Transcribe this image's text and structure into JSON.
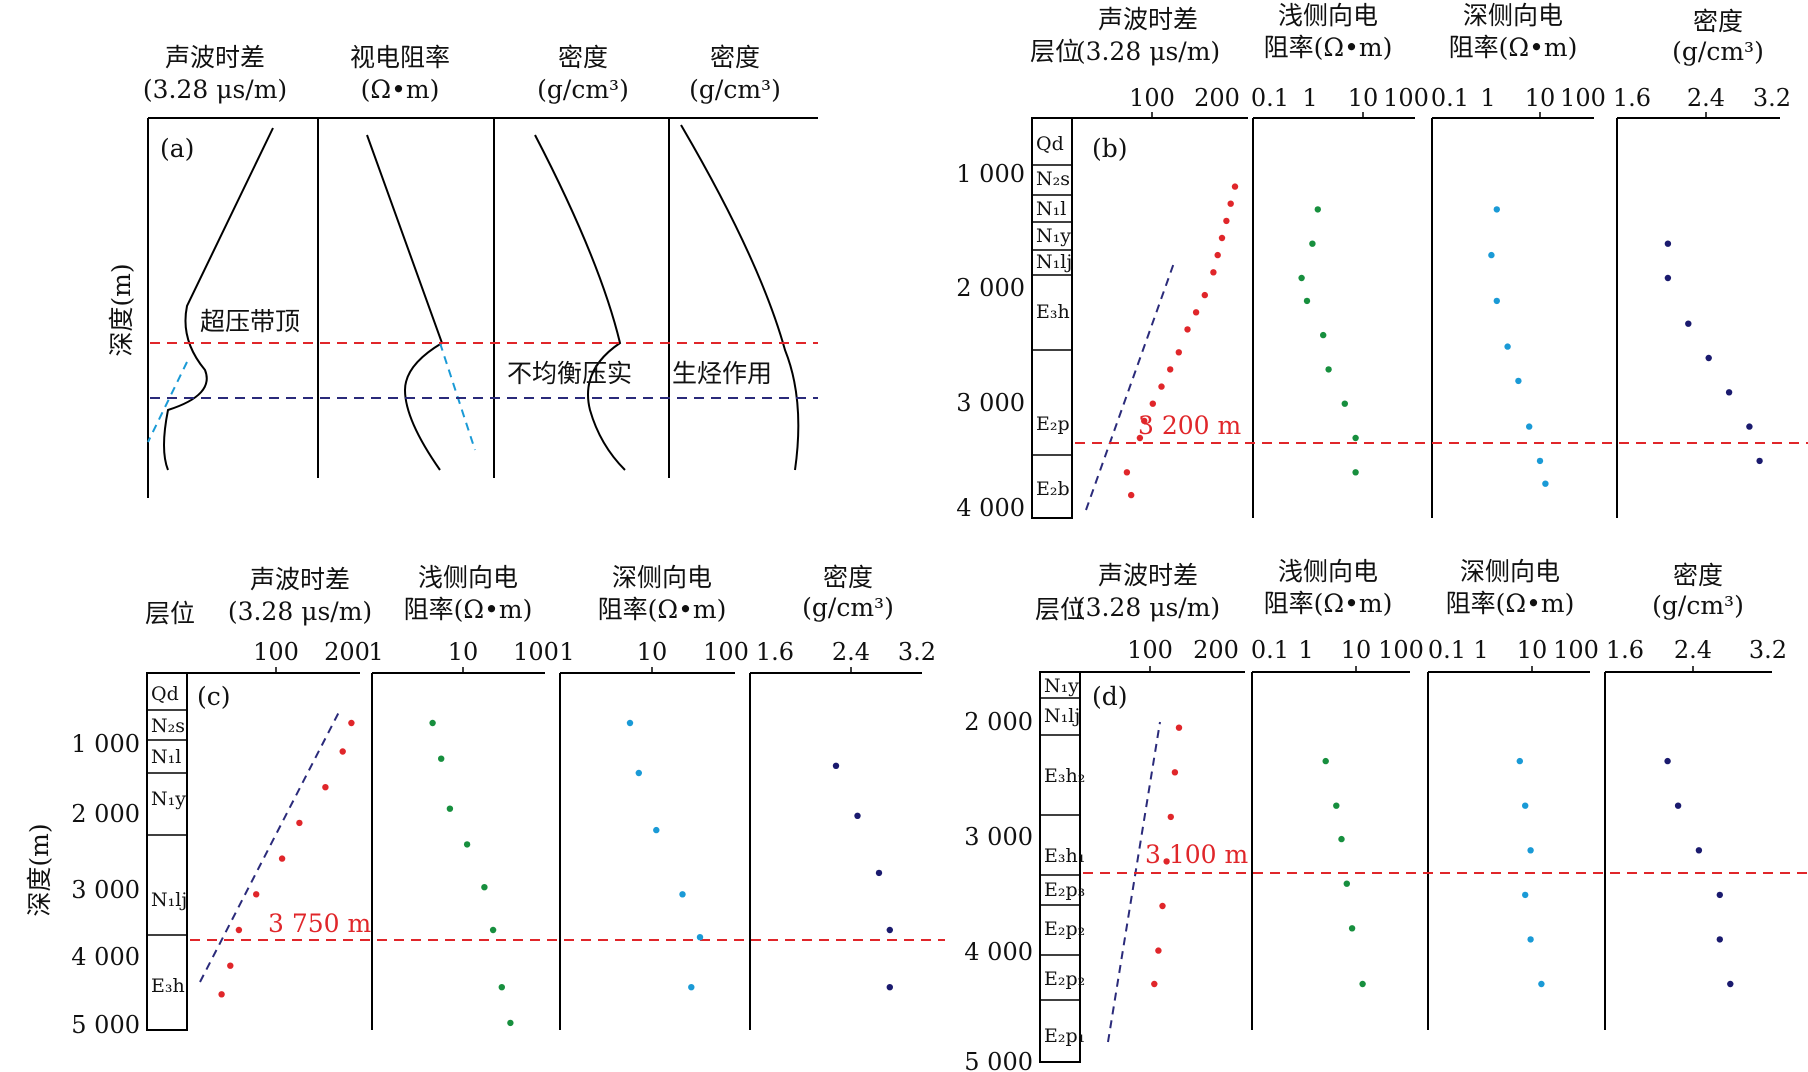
{
  "colors": {
    "sonic": "#e0262a",
    "shallow": "#178f3e",
    "deep": "#1a9ad6",
    "density": "#1a1a6e",
    "overpressure_line": "#e0262a",
    "trend": "#2a2a7a"
  },
  "panel_a": {
    "tag": "(a)",
    "ylabel": "深度(m)",
    "headers": [
      [
        "声波时差",
        "(3.28 μs/m)"
      ],
      [
        "视电阻率",
        "(Ω•m)"
      ],
      [
        "密度",
        "(g/cm³)"
      ],
      [
        "密度",
        "(g/cm³)"
      ]
    ],
    "annotations": {
      "top": "超压带顶",
      "compaction": "不均衡压实",
      "hydrocarbon": "生烃作用"
    }
  },
  "panels": {
    "b": {
      "tag": "(b)",
      "strat_header": "层位",
      "depth_marker": "3 200 m",
      "depth_marker_value": 3200,
      "headers": [
        [
          "声波时差",
          "(3.28 μs/m)"
        ],
        [
          "浅侧向电",
          "阻率(Ω•m)"
        ],
        [
          "深侧向电",
          "阻率(Ω•m)"
        ],
        [
          "密度",
          "(g/cm³)"
        ]
      ],
      "ticks": [
        [
          "100",
          "200"
        ],
        [
          "0.1",
          "1",
          "10",
          "100"
        ],
        [
          "0.1",
          "1",
          "10",
          "100"
        ],
        [
          "1.6",
          "2.4",
          "3.2"
        ]
      ],
      "depth_ticks": [
        "1 000",
        "2 000",
        "3 000",
        "4 000"
      ],
      "formations": [
        "Qd",
        "N₂s",
        "N₁l",
        "N₁y",
        "N₁lj",
        "E₃h",
        "E₂p",
        "E₂b"
      ]
    },
    "c": {
      "tag": "(c)",
      "strat_header": "层位",
      "ylabel": "深度(m)",
      "depth_marker": "3 750 m",
      "depth_marker_value": 3750,
      "headers": [
        [
          "声波时差",
          "(3.28 μs/m)"
        ],
        [
          "浅侧向电",
          "阻率(Ω•m)"
        ],
        [
          "深侧向电",
          "阻率(Ω•m)"
        ],
        [
          "密度",
          "(g/cm³)"
        ]
      ],
      "ticks": [
        [
          "100",
          "200"
        ],
        [
          "1",
          "10",
          "100"
        ],
        [
          "1",
          "10",
          "100"
        ],
        [
          "1.6",
          "2.4",
          "3.2"
        ]
      ],
      "depth_ticks": [
        "1 000",
        "2 000",
        "3 000",
        "4 000",
        "5 000"
      ],
      "formations": [
        "Qd",
        "N₂s",
        "N₁l",
        "N₁y",
        "N₁lj",
        "E₃h"
      ]
    },
    "d": {
      "tag": "(d)",
      "strat_header": "层位",
      "depth_marker": "3 100 m",
      "depth_marker_value": 3100,
      "headers": [
        [
          "声波时差",
          "(3.28 μs/m)"
        ],
        [
          "浅侧向电",
          "阻率(Ω•m)"
        ],
        [
          "深侧向电",
          "阻率(Ω•m)"
        ],
        [
          "密度",
          "(g/cm³)"
        ]
      ],
      "ticks": [
        [
          "100",
          "200"
        ],
        [
          "0.1",
          "1",
          "10",
          "100"
        ],
        [
          "0.1",
          "1",
          "10",
          "100"
        ],
        [
          "1.6",
          "2.4",
          "3.2"
        ]
      ],
      "depth_ticks": [
        "2 000",
        "3 000",
        "4 000",
        "5 000"
      ],
      "formations": [
        "N₁y",
        "N₁lj",
        "E₃h₂",
        "E₃h₁",
        "E₂p₃",
        "E₂p₂",
        "E₂p₂",
        "E₂p₁"
      ]
    }
  },
  "chart_data": [
    {
      "type": "line",
      "panel": "a",
      "series": [
        {
          "values": [
            [
              0,
              0
            ],
            [
              0.45,
              0.3
            ],
            [
              0.1,
              0.55
            ],
            [
              0.3,
              0.7
            ],
            [
              0,
              0.9
            ]
          ]
        },
        {
          "values": [
            [
              0.3,
              0.0
            ],
            [
              0.75,
              0.3
            ],
            [
              0.35,
              0.55
            ],
            [
              0.7,
              0.9
            ]
          ]
        },
        {
          "values": [
            [
              0.3,
              0.0
            ],
            [
              0.75,
              0.3
            ],
            [
              0.55,
              0.55
            ],
            [
              0.75,
              0.9
            ]
          ]
        },
        {
          "values": [
            [
              0,
              0
            ],
            [
              0.75,
              0.6
            ],
            [
              0.75,
              0.9
            ]
          ]
        }
      ]
    },
    {
      "type": "scatter",
      "panel": "b",
      "ylim": [
        500,
        4000
      ],
      "overpressure_top": 3200,
      "series": [
        {
          "name": "声波时差",
          "xlim": [
            0,
            200
          ],
          "values": [
            [
              185,
              1100
            ],
            [
              180,
              1250
            ],
            [
              175,
              1400
            ],
            [
              170,
              1550
            ],
            [
              165,
              1700
            ],
            [
              160,
              1850
            ],
            [
              150,
              2050
            ],
            [
              140,
              2200
            ],
            [
              130,
              2350
            ],
            [
              120,
              2550
            ],
            [
              110,
              2700
            ],
            [
              100,
              2850
            ],
            [
              90,
              3000
            ],
            [
              80,
              3150
            ],
            [
              75,
              3300
            ],
            [
              60,
              3600
            ],
            [
              65,
              3800
            ]
          ]
        },
        {
          "name": "浅侧向电阻率",
          "xlim": [
            -1,
            2
          ],
          "values": [
            [
              0.2,
              1300
            ],
            [
              0.1,
              1600
            ],
            [
              -0.1,
              1900
            ],
            [
              0.0,
              2100
            ],
            [
              0.3,
              2400
            ],
            [
              0.4,
              2700
            ],
            [
              0.7,
              3000
            ],
            [
              0.9,
              3300
            ],
            [
              0.9,
              3600
            ]
          ]
        },
        {
          "name": "深侧向电阻率",
          "xlim": [
            -1,
            2
          ],
          "values": [
            [
              0.2,
              1300
            ],
            [
              0.1,
              1700
            ],
            [
              0.2,
              2100
            ],
            [
              0.4,
              2500
            ],
            [
              0.6,
              2800
            ],
            [
              0.8,
              3200
            ],
            [
              1.0,
              3500
            ],
            [
              1.1,
              3700
            ]
          ]
        },
        {
          "name": "密度",
          "xlim": [
            1.6,
            3.2
          ],
          "values": [
            [
              2.1,
              1600
            ],
            [
              2.1,
              1900
            ],
            [
              2.3,
              2300
            ],
            [
              2.5,
              2600
            ],
            [
              2.7,
              2900
            ],
            [
              2.9,
              3200
            ],
            [
              3.0,
              3500
            ]
          ]
        }
      ]
    },
    {
      "type": "scatter",
      "panel": "c",
      "ylim": [
        0,
        5000
      ],
      "overpressure_top": 3750,
      "series": [
        {
          "name": "声波时差",
          "xlim": [
            0,
            200
          ],
          "values": [
            [
              190,
              700
            ],
            [
              180,
              1100
            ],
            [
              160,
              1600
            ],
            [
              130,
              2100
            ],
            [
              110,
              2600
            ],
            [
              80,
              3100
            ],
            [
              60,
              3600
            ],
            [
              50,
              4100
            ],
            [
              40,
              4500
            ]
          ]
        },
        {
          "name": "浅侧向电阻率",
          "xlim": [
            0,
            2
          ],
          "values": [
            [
              0.7,
              700
            ],
            [
              0.8,
              1200
            ],
            [
              0.9,
              1900
            ],
            [
              1.1,
              2400
            ],
            [
              1.3,
              3000
            ],
            [
              1.4,
              3600
            ],
            [
              1.5,
              4400
            ],
            [
              1.6,
              4900
            ]
          ]
        },
        {
          "name": "深侧向电阻率",
          "xlim": [
            0,
            2
          ],
          "values": [
            [
              0.8,
              700
            ],
            [
              0.9,
              1400
            ],
            [
              1.1,
              2200
            ],
            [
              1.4,
              3100
            ],
            [
              1.6,
              3700
            ],
            [
              1.5,
              4400
            ]
          ]
        },
        {
          "name": "密度",
          "xlim": [
            1.6,
            3.2
          ],
          "values": [
            [
              2.4,
              1300
            ],
            [
              2.6,
              2000
            ],
            [
              2.8,
              2800
            ],
            [
              2.9,
              3600
            ],
            [
              2.9,
              4400
            ]
          ]
        }
      ]
    },
    {
      "type": "scatter",
      "panel": "d",
      "ylim": [
        1500,
        5000
      ],
      "overpressure_top": 3100,
      "series": [
        {
          "name": "声波时差",
          "xlim": [
            0,
            200
          ],
          "values": [
            [
              120,
              2000
            ],
            [
              115,
              2400
            ],
            [
              110,
              2800
            ],
            [
              105,
              3200
            ],
            [
              100,
              3600
            ],
            [
              95,
              4000
            ],
            [
              90,
              4300
            ]
          ]
        },
        {
          "name": "浅侧向电阻率",
          "xlim": [
            -1,
            2
          ],
          "values": [
            [
              0.4,
              2300
            ],
            [
              0.6,
              2700
            ],
            [
              0.7,
              3000
            ],
            [
              0.8,
              3400
            ],
            [
              0.9,
              3800
            ],
            [
              1.1,
              4300
            ]
          ]
        },
        {
          "name": "深侧向电阻率",
          "xlim": [
            -1,
            2
          ],
          "values": [
            [
              0.7,
              2300
            ],
            [
              0.8,
              2700
            ],
            [
              0.9,
              3100
            ],
            [
              0.8,
              3500
            ],
            [
              0.9,
              3900
            ],
            [
              1.1,
              4300
            ]
          ]
        },
        {
          "name": "密度",
          "xlim": [
            1.6,
            3.2
          ],
          "values": [
            [
              2.2,
              2300
            ],
            [
              2.3,
              2700
            ],
            [
              2.5,
              3100
            ],
            [
              2.7,
              3500
            ],
            [
              2.7,
              3900
            ],
            [
              2.8,
              4300
            ]
          ]
        }
      ]
    }
  ]
}
